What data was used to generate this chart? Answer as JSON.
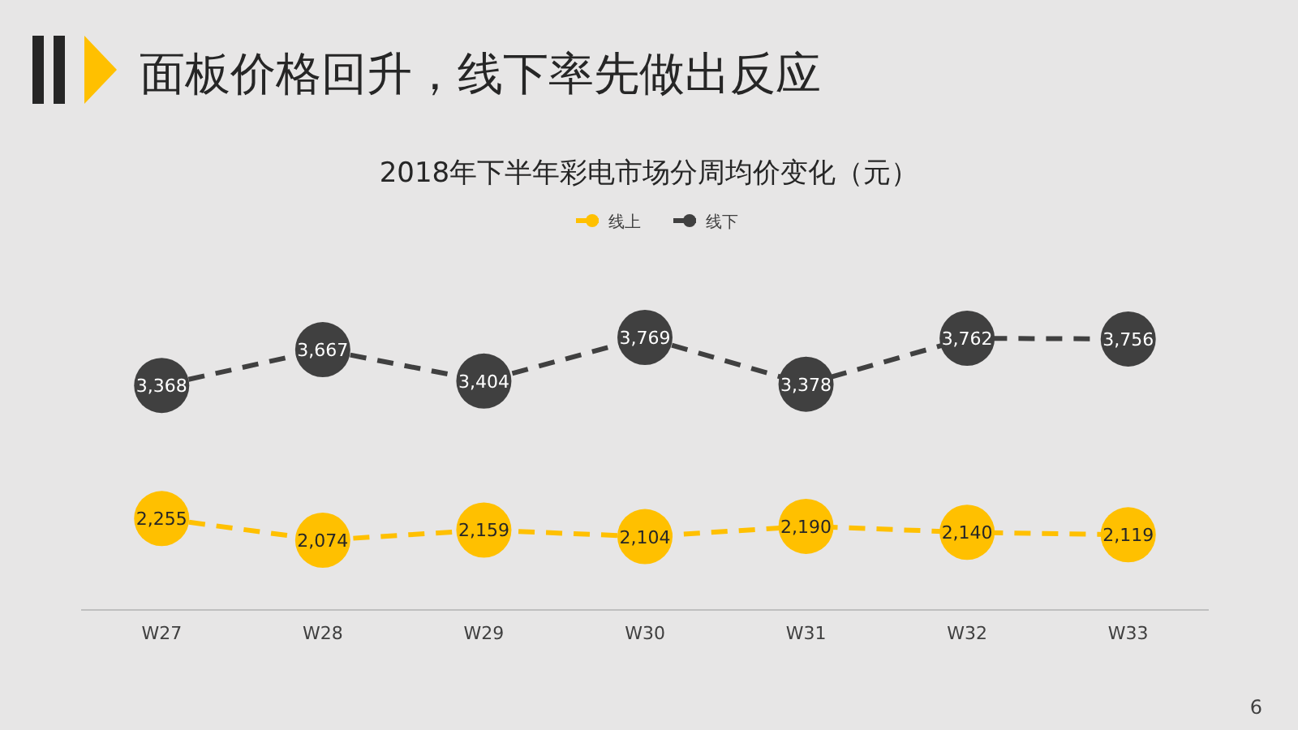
{
  "chart_data": {
    "type": "line",
    "title": "面板价格回升，线下率先做出反应",
    "subtitle": "2018年下半年彩电市场分周均价变化（元）",
    "categories": [
      "W27",
      "W28",
      "W29",
      "W30",
      "W31",
      "W32",
      "W33"
    ],
    "series": [
      {
        "name": "线上",
        "color": "#ffc000",
        "values": [
          2255,
          2074,
          2159,
          2104,
          2190,
          2140,
          2119
        ],
        "value_labels": [
          "2,255",
          "2,074",
          "2,159",
          "2,104",
          "2,190",
          "2,140",
          "2,119"
        ]
      },
      {
        "name": "线下",
        "color": "#404040",
        "values": [
          3368,
          3667,
          3404,
          3769,
          3378,
          3762,
          3756
        ],
        "value_labels": [
          "3,368",
          "3,667",
          "3,404",
          "3,769",
          "3,378",
          "3,762",
          "3,756"
        ]
      }
    ],
    "legend": "top",
    "marker": "circle",
    "line_style": "dashed",
    "annotations": [
      "6"
    ]
  }
}
